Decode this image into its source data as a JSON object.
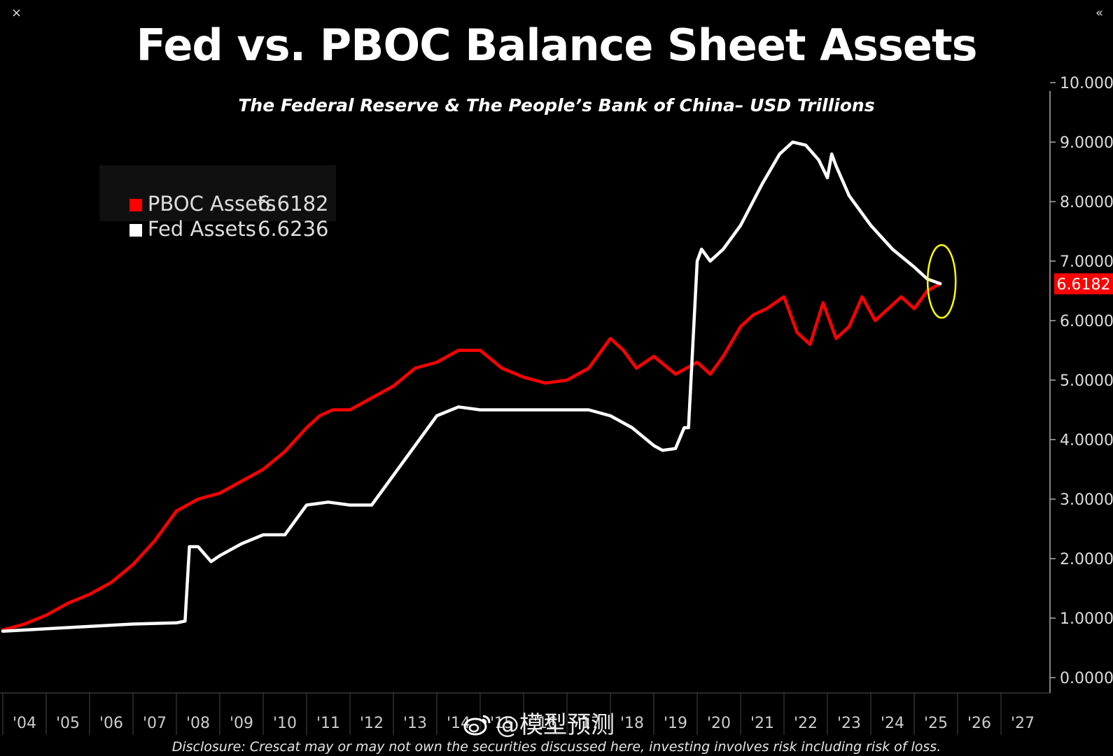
{
  "window": {
    "close_icon": "×",
    "collapse_icon": "«"
  },
  "title": "Fed vs. PBOC Balance Sheet Assets",
  "subtitle": "The Federal Reserve & The People’s Bank of China– USD Trillions",
  "legend": {
    "items": [
      {
        "label": "PBOC Assets",
        "value": "6.6182",
        "color": "#ff0000"
      },
      {
        "label": "Fed Assets",
        "value": "6.6236",
        "color": "#ffffff"
      }
    ]
  },
  "disclosure": "Disclosure: Crescat may or may not own the securities discussed here, investing involves risk including risk of loss.",
  "watermark": "@模型预测",
  "chart_data": {
    "type": "line",
    "title": "Fed vs. PBOC Balance Sheet Assets",
    "ylabel": "USD Trillions",
    "ylim": [
      0,
      10
    ],
    "y_ticks": [
      "0.0000",
      "1.0000",
      "2.0000",
      "3.0000",
      "4.0000",
      "5.0000",
      "6.0000",
      "7.0000",
      "8.0000",
      "9.0000",
      "10.000"
    ],
    "x_range": [
      2004,
      2028
    ],
    "x_ticks": [
      "'04",
      "'05",
      "'06",
      "'07",
      "'08",
      "'09",
      "'10",
      "'11",
      "'12",
      "'13",
      "'14",
      "'15",
      "'16",
      "'17",
      "'18",
      "'19",
      "'20",
      "'21",
      "'22",
      "'23",
      "'24",
      "'25",
      "'26",
      "'27"
    ],
    "last_value_label": "6.6182",
    "last_value_color": "#ff0000",
    "highlight": {
      "x": 2025.6,
      "y": 6.6,
      "color": "#ffff00"
    },
    "series": [
      {
        "name": "PBOC Assets",
        "color": "#ff0000",
        "x": [
          2004.0,
          2004.5,
          2005.0,
          2005.5,
          2006.0,
          2006.5,
          2007.0,
          2007.5,
          2008.0,
          2008.5,
          2009.0,
          2009.5,
          2010.0,
          2010.5,
          2011.0,
          2011.3,
          2011.6,
          2012.0,
          2012.5,
          2013.0,
          2013.5,
          2014.0,
          2014.5,
          2015.0,
          2015.5,
          2016.0,
          2016.5,
          2017.0,
          2017.5,
          2018.0,
          2018.3,
          2018.6,
          2019.0,
          2019.5,
          2020.0,
          2020.3,
          2020.6,
          2021.0,
          2021.3,
          2021.6,
          2022.0,
          2022.3,
          2022.6,
          2022.9,
          2023.2,
          2023.5,
          2023.8,
          2024.1,
          2024.4,
          2024.7,
          2025.0,
          2025.3,
          2025.6
        ],
        "values": [
          0.8,
          0.9,
          1.05,
          1.25,
          1.4,
          1.6,
          1.9,
          2.3,
          2.8,
          3.0,
          3.1,
          3.3,
          3.5,
          3.8,
          4.2,
          4.4,
          4.5,
          4.5,
          4.7,
          4.9,
          5.2,
          5.3,
          5.5,
          5.5,
          5.2,
          5.05,
          4.95,
          5.0,
          5.2,
          5.7,
          5.5,
          5.2,
          5.4,
          5.1,
          5.3,
          5.1,
          5.4,
          5.9,
          6.1,
          6.2,
          6.4,
          5.8,
          5.6,
          6.3,
          5.7,
          5.9,
          6.4,
          6.0,
          6.2,
          6.4,
          6.2,
          6.5,
          6.62
        ]
      },
      {
        "name": "Fed Assets",
        "color": "#ffffff",
        "x": [
          2004.0,
          2005.0,
          2006.0,
          2007.0,
          2008.0,
          2008.2,
          2008.3,
          2008.5,
          2008.8,
          2009.0,
          2009.5,
          2010.0,
          2010.5,
          2011.0,
          2011.5,
          2012.0,
          2012.5,
          2013.0,
          2013.5,
          2014.0,
          2014.5,
          2015.0,
          2016.0,
          2017.0,
          2017.5,
          2018.0,
          2018.5,
          2019.0,
          2019.2,
          2019.5,
          2019.7,
          2019.8,
          2020.0,
          2020.1,
          2020.3,
          2020.6,
          2021.0,
          2021.5,
          2021.9,
          2022.2,
          2022.5,
          2022.8,
          2023.0,
          2023.1,
          2023.2,
          2023.5,
          2024.0,
          2024.5,
          2025.0,
          2025.3,
          2025.6
        ],
        "values": [
          0.78,
          0.82,
          0.86,
          0.9,
          0.92,
          0.95,
          2.2,
          2.2,
          1.95,
          2.05,
          2.25,
          2.4,
          2.4,
          2.9,
          2.95,
          2.9,
          2.9,
          3.4,
          3.9,
          4.4,
          4.55,
          4.5,
          4.5,
          4.5,
          4.5,
          4.4,
          4.2,
          3.9,
          3.82,
          3.85,
          4.2,
          4.2,
          7.0,
          7.2,
          7.0,
          7.2,
          7.6,
          8.3,
          8.8,
          9.0,
          8.95,
          8.7,
          8.4,
          8.8,
          8.6,
          8.1,
          7.6,
          7.2,
          6.9,
          6.7,
          6.62
        ]
      }
    ]
  }
}
